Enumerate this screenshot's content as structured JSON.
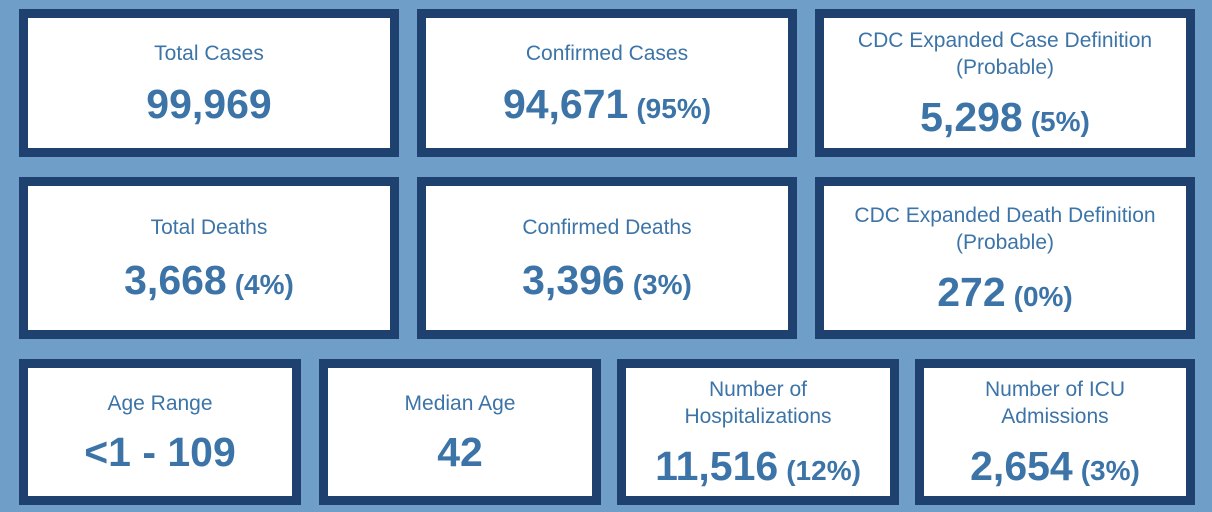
{
  "dashboard": {
    "cards": [
      {
        "label_lines": [
          "Total Cases"
        ],
        "value": "99,969",
        "percent": ""
      },
      {
        "label_lines": [
          "Confirmed Cases"
        ],
        "value": "94,671",
        "percent": "(95%)"
      },
      {
        "label_lines": [
          "CDC Expanded Case Definition",
          "(Probable)"
        ],
        "value": "5,298",
        "percent": "(5%)"
      },
      {
        "label_lines": [
          "Total Deaths"
        ],
        "value": "3,668",
        "percent": "(4%)"
      },
      {
        "label_lines": [
          "Confirmed Deaths"
        ],
        "value": "3,396",
        "percent": "(3%)"
      },
      {
        "label_lines": [
          "CDC Expanded Death Definition",
          "(Probable)"
        ],
        "value": "272",
        "percent": "(0%)"
      },
      {
        "label_lines": [
          "Age Range"
        ],
        "value": "<1 - 109",
        "percent": ""
      },
      {
        "label_lines": [
          "Median Age"
        ],
        "value": "42",
        "percent": ""
      },
      {
        "label_lines": [
          "Number of",
          "Hospitalizations"
        ],
        "value": "11,516",
        "percent": "(12%)"
      },
      {
        "label_lines": [
          "Number of ICU",
          "Admissions"
        ],
        "value": "2,654",
        "percent": "(3%)"
      }
    ]
  },
  "colors": {
    "background": "#6f9fc9",
    "card_border": "#1f4170",
    "card_background": "#ffffff",
    "text": "#3c74a8"
  }
}
